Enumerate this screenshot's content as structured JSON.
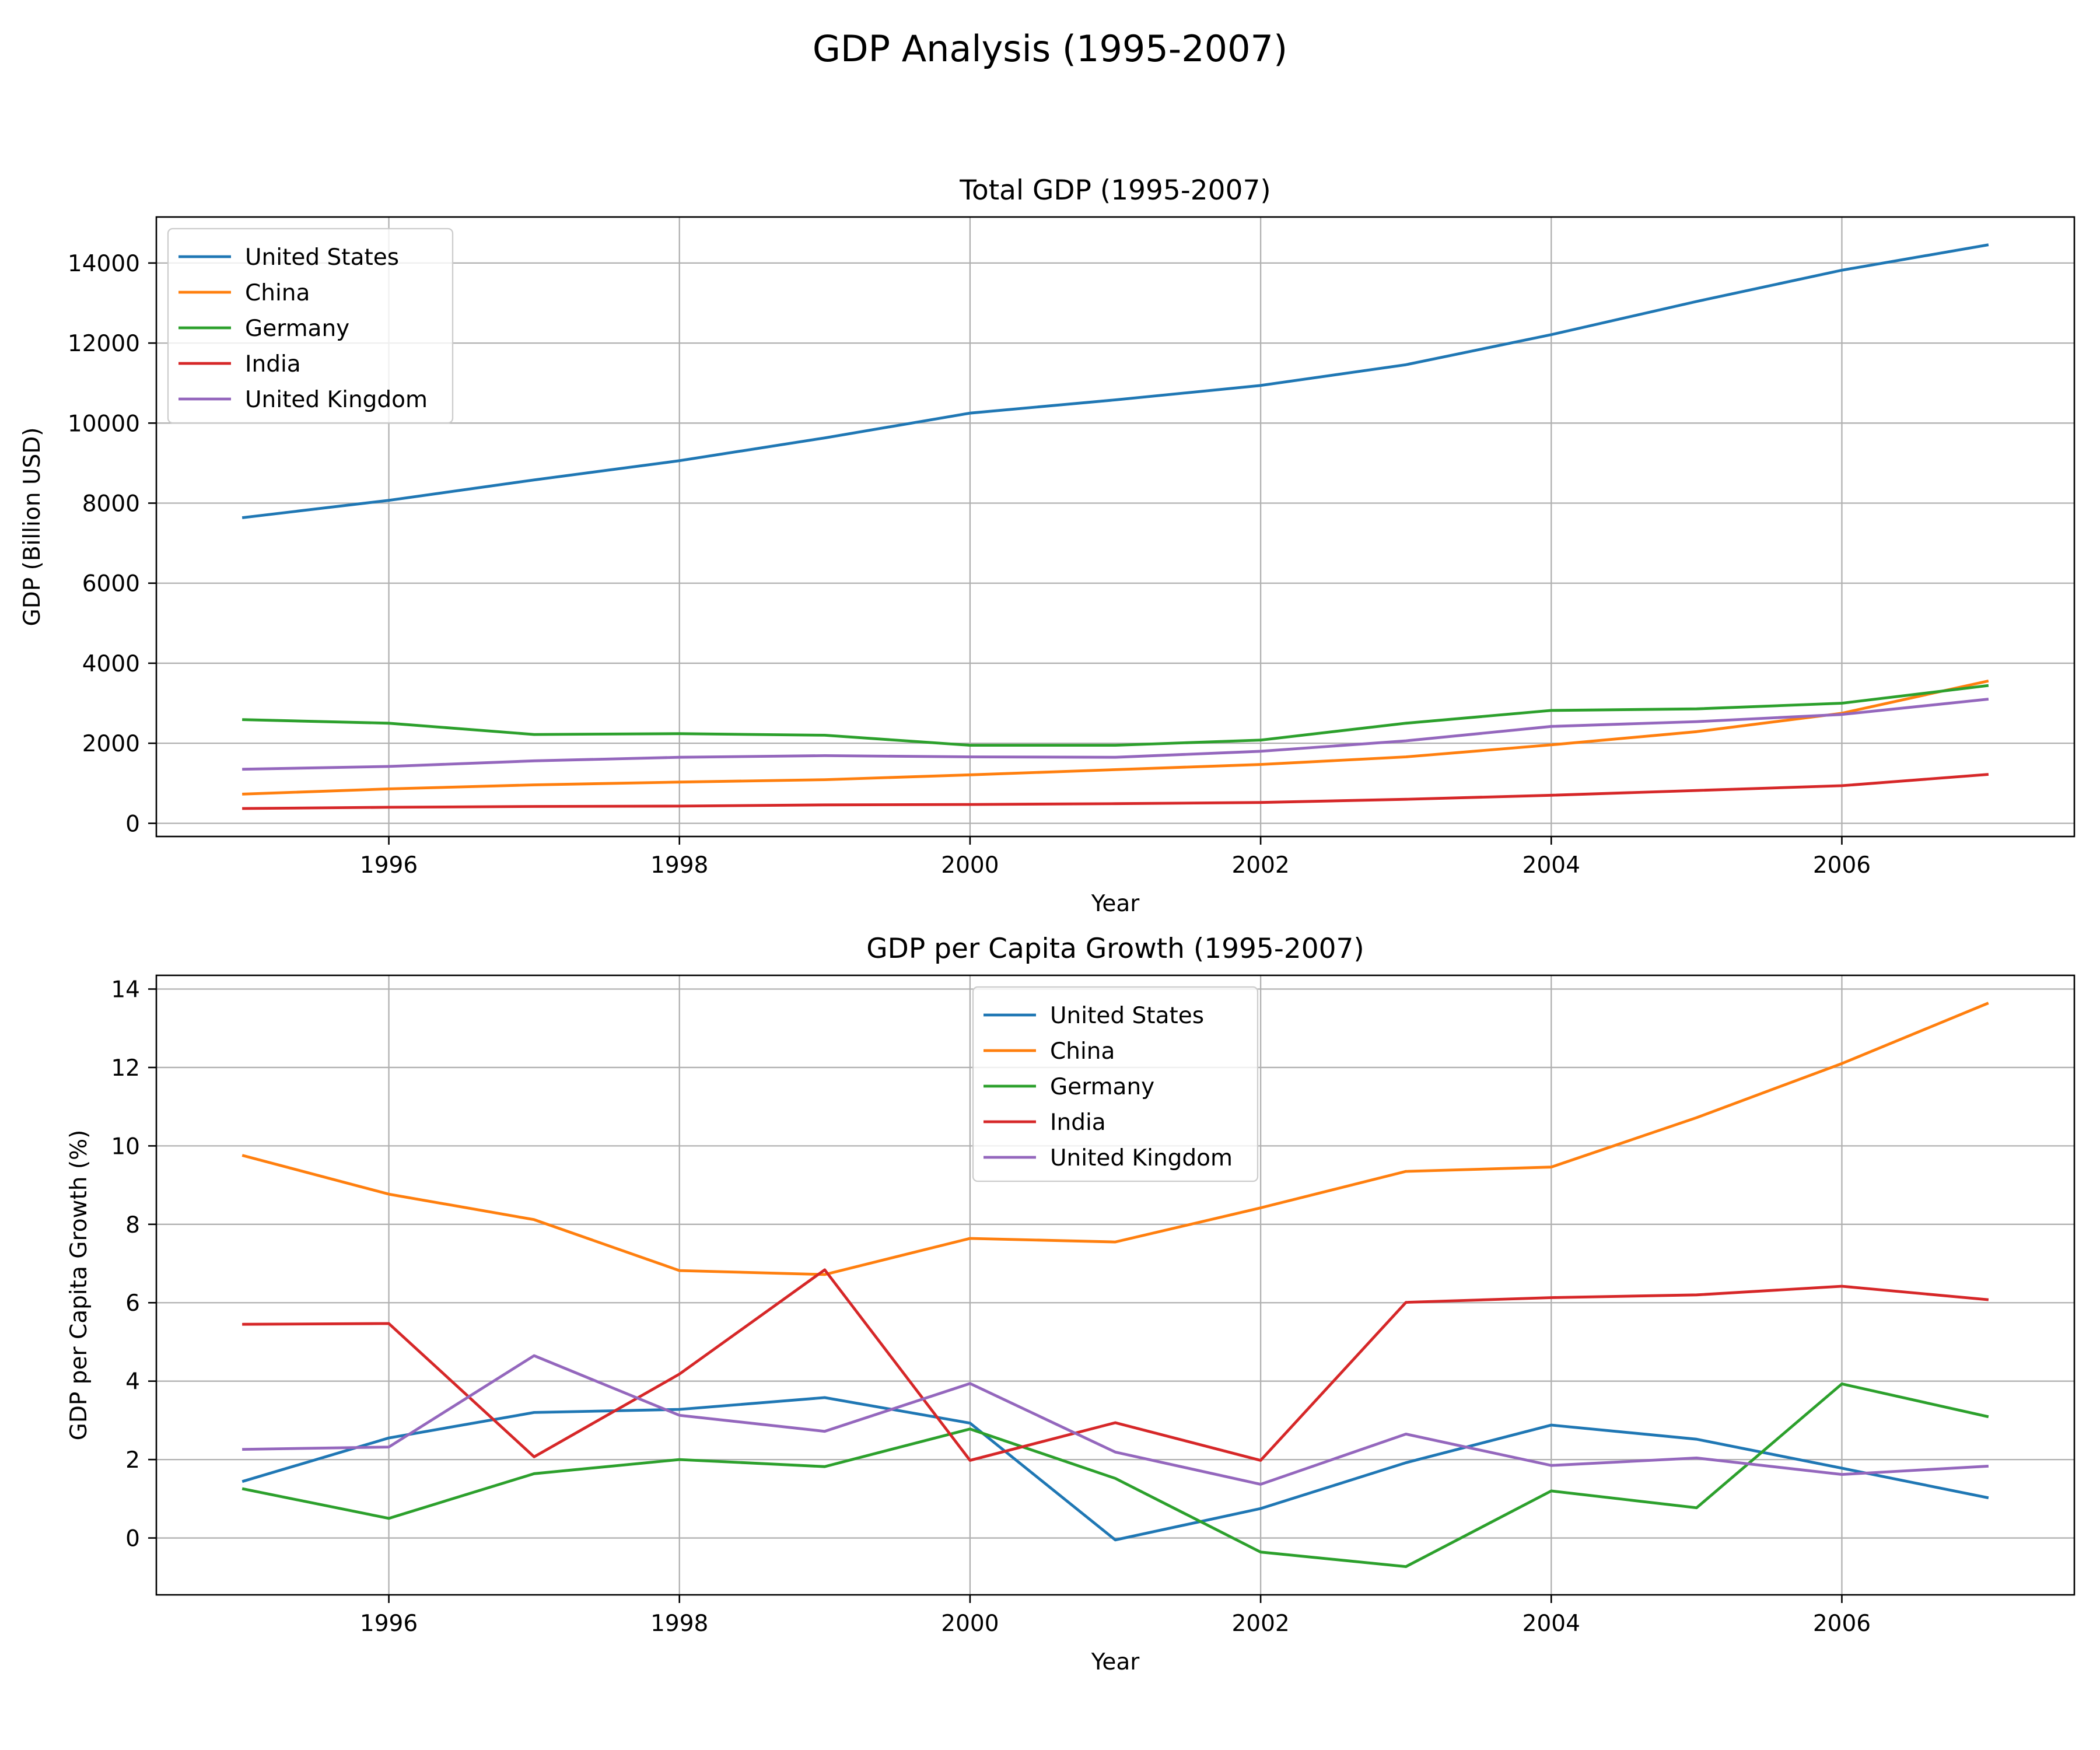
{
  "figure_title": "GDP Analysis (1995-2007)",
  "colors": {
    "United States": "#1f77b4",
    "China": "#ff7f0e",
    "Germany": "#2ca02c",
    "India": "#d62728",
    "United Kingdom": "#9467bd"
  },
  "chart_data": [
    {
      "type": "line",
      "title": "Total GDP (1995-2007)",
      "xlabel": "Year",
      "ylabel": "GDP (Billion USD)",
      "x": [
        1995,
        1996,
        1997,
        1998,
        1999,
        2000,
        2001,
        2002,
        2003,
        2004,
        2005,
        2006,
        2007
      ],
      "xticks": [
        1996,
        1998,
        2000,
        2002,
        2004,
        2006
      ],
      "yticks": [
        0,
        2000,
        4000,
        6000,
        8000,
        10000,
        12000,
        14000
      ],
      "xlim": [
        1994.4,
        2007.6
      ],
      "ylim": [
        -330,
        15150
      ],
      "grid": true,
      "legend": "upper left",
      "series": [
        {
          "name": "United States",
          "values": [
            7640,
            8070,
            8580,
            9060,
            9630,
            10250,
            10580,
            10940,
            11460,
            12210,
            13040,
            13820,
            14450
          ]
        },
        {
          "name": "China",
          "values": [
            730,
            860,
            960,
            1030,
            1090,
            1210,
            1340,
            1470,
            1660,
            1960,
            2290,
            2750,
            3550
          ]
        },
        {
          "name": "Germany",
          "values": [
            2590,
            2500,
            2220,
            2240,
            2200,
            1950,
            1950,
            2080,
            2500,
            2820,
            2860,
            3000,
            3440
          ]
        },
        {
          "name": "India",
          "values": [
            370,
            400,
            420,
            430,
            460,
            470,
            490,
            520,
            600,
            700,
            820,
            940,
            1220
          ]
        },
        {
          "name": "United Kingdom",
          "values": [
            1350,
            1420,
            1560,
            1650,
            1690,
            1660,
            1650,
            1800,
            2060,
            2420,
            2540,
            2720,
            3100
          ]
        }
      ]
    },
    {
      "type": "line",
      "title": "GDP per Capita Growth (1995-2007)",
      "xlabel": "Year",
      "ylabel": "GDP per Capita Growth (%)",
      "x": [
        1995,
        1996,
        1997,
        1998,
        1999,
        2000,
        2001,
        2002,
        2003,
        2004,
        2005,
        2006,
        2007
      ],
      "xticks": [
        1996,
        1998,
        2000,
        2002,
        2004,
        2006
      ],
      "yticks": [
        0,
        2,
        4,
        6,
        8,
        10,
        12,
        14
      ],
      "xlim": [
        1994.4,
        2007.6
      ],
      "ylim": [
        -1.45,
        14.35
      ],
      "grid": true,
      "legend": "upper center",
      "series": [
        {
          "name": "United States",
          "values": [
            1.45,
            2.55,
            3.2,
            3.28,
            3.58,
            2.93,
            -0.05,
            0.75,
            1.92,
            2.88,
            2.52,
            1.78,
            1.03
          ]
        },
        {
          "name": "China",
          "values": [
            9.75,
            8.77,
            8.12,
            6.82,
            6.72,
            7.64,
            7.55,
            8.42,
            9.35,
            9.46,
            10.72,
            12.1,
            13.63
          ]
        },
        {
          "name": "Germany",
          "values": [
            1.25,
            0.5,
            1.64,
            2.0,
            1.82,
            2.78,
            1.52,
            -0.36,
            -0.73,
            1.2,
            0.77,
            3.93,
            3.1
          ]
        },
        {
          "name": "India",
          "values": [
            5.45,
            5.47,
            2.07,
            4.18,
            6.84,
            1.98,
            2.94,
            1.98,
            6.01,
            6.13,
            6.2,
            6.42,
            6.08
          ]
        },
        {
          "name": "United Kingdom",
          "values": [
            2.26,
            2.32,
            4.65,
            3.13,
            2.72,
            3.94,
            2.19,
            1.37,
            2.65,
            1.85,
            2.04,
            1.62,
            1.83
          ]
        }
      ]
    }
  ]
}
